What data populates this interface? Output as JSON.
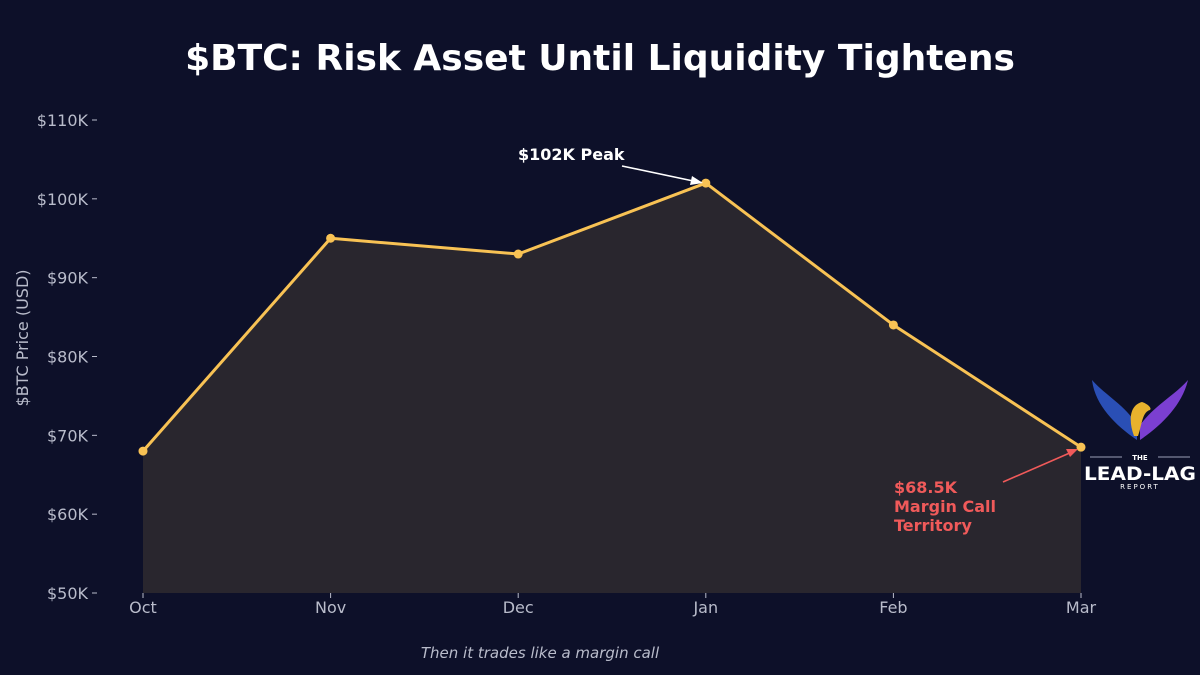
{
  "chart_data": {
    "type": "area",
    "title": "$BTC: Risk Asset Until Liquidity Tightens",
    "xlabel": "",
    "ylabel": "$BTC Price (USD)",
    "categories": [
      "Oct",
      "Nov",
      "Dec",
      "Jan",
      "Feb",
      "Mar"
    ],
    "series": [
      {
        "name": "$BTC",
        "values": [
          68000,
          95000,
          93000,
          102000,
          84000,
          68500
        ]
      }
    ],
    "ylim": [
      50000,
      110000
    ],
    "yticks": [
      50000,
      60000,
      70000,
      80000,
      90000,
      100000,
      110000
    ],
    "ytick_labels": [
      "$50K",
      "$60K",
      "$70K",
      "$80K",
      "$90K",
      "$100K",
      "$110K"
    ],
    "grid": false,
    "annotations": [
      {
        "text": "$102K Peak",
        "x": "Jan",
        "y": 102000
      },
      {
        "text_lines": [
          "$68.5K",
          "Margin Call",
          "Territory"
        ],
        "x": "Mar",
        "y": 68500
      }
    ],
    "caption": "Then it trades like a margin call",
    "colors": {
      "line": "#f8c254",
      "fill": "#29262e",
      "background": "#0d1029",
      "peak_annotation": "#ffffff",
      "low_annotation": "#f05a5a"
    }
  },
  "logo": {
    "line1": "THE",
    "line2": "LEAD-LAG",
    "line3": "REPORT"
  }
}
